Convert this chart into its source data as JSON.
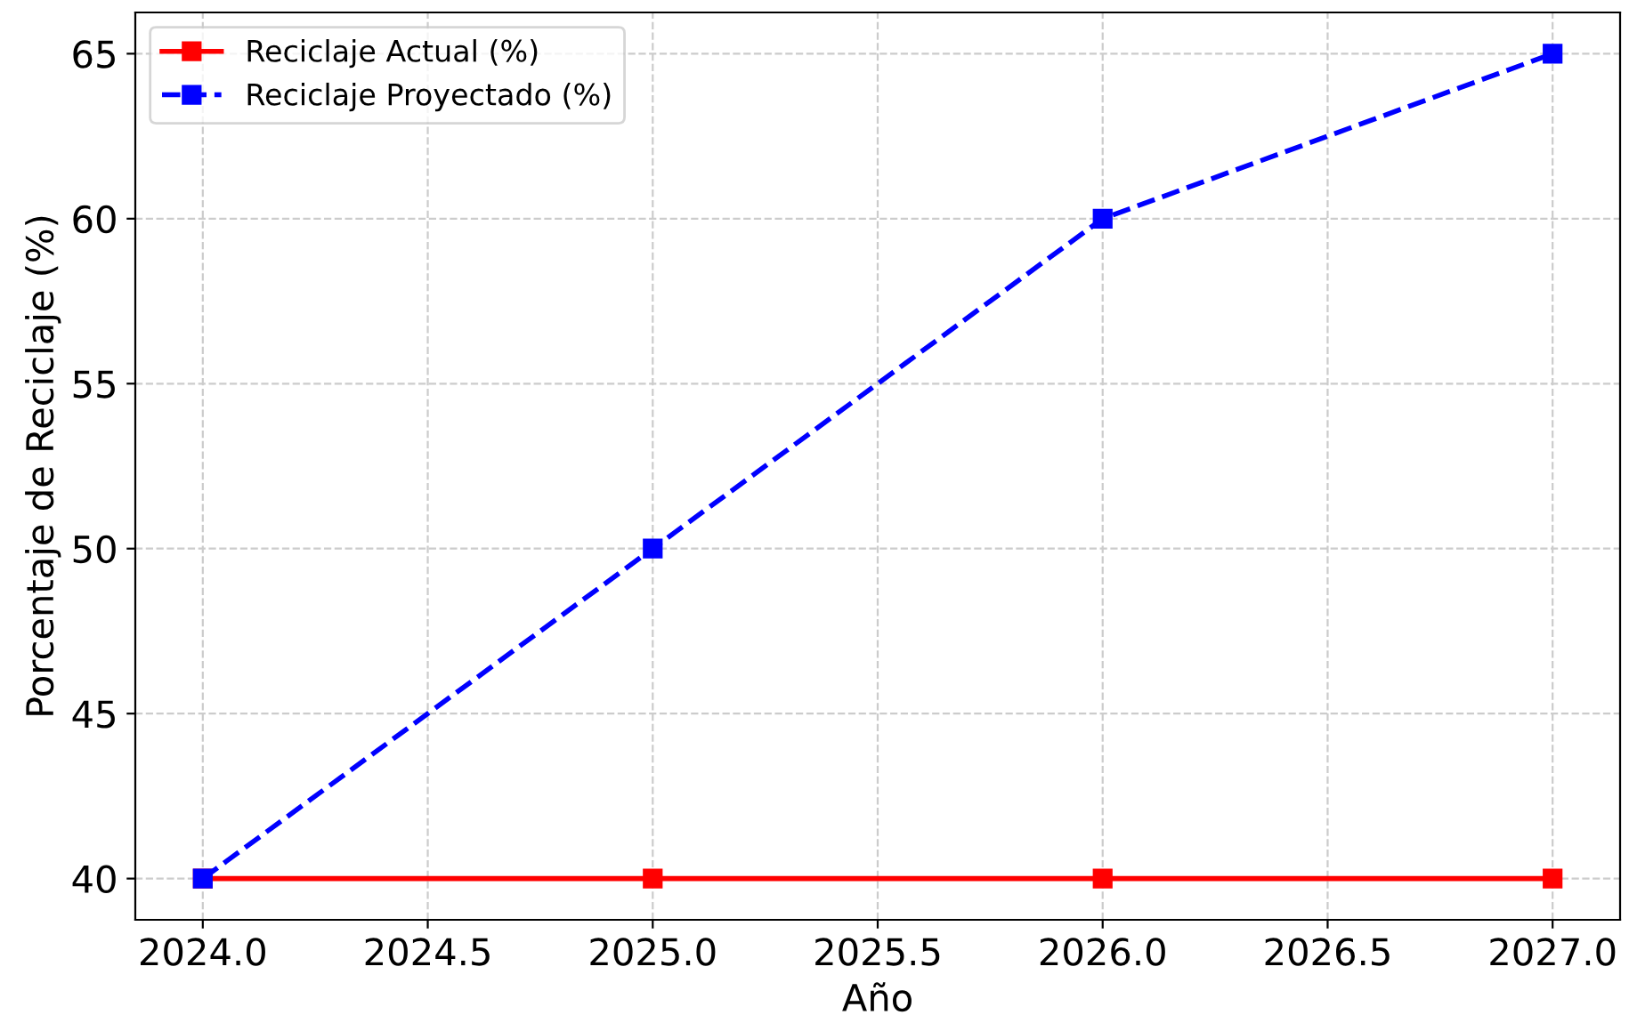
{
  "chart_data": {
    "type": "line",
    "xlabel": "Año",
    "ylabel": "Porcentaje de Reciclaje (%)",
    "x": [
      2024,
      2025,
      2026,
      2027
    ],
    "series": [
      {
        "name": "Reciclaje Actual (%)",
        "color": "#ff0000",
        "values": [
          40,
          40,
          40,
          40
        ],
        "line_style": "solid"
      },
      {
        "name": "Reciclaje Proyectado (%)",
        "color": "#0000ff",
        "values": [
          40,
          50,
          60,
          65
        ],
        "line_style": "dashed"
      }
    ],
    "xlim": [
      2023.85,
      2027.15
    ],
    "ylim": [
      38.75,
      66.25
    ],
    "xticks": [
      {
        "value": 2024,
        "label": "2024.0"
      },
      {
        "value": 2024.5,
        "label": "2024.5"
      },
      {
        "value": 2025,
        "label": "2025.0"
      },
      {
        "value": 2025.5,
        "label": "2025.5"
      },
      {
        "value": 2026,
        "label": "2026.0"
      },
      {
        "value": 2026.5,
        "label": "2026.5"
      },
      {
        "value": 2027,
        "label": "2027.0"
      }
    ],
    "yticks": [
      40,
      45,
      50,
      55,
      60,
      65
    ],
    "grid": true,
    "legend": "top left",
    "marker": "square"
  }
}
